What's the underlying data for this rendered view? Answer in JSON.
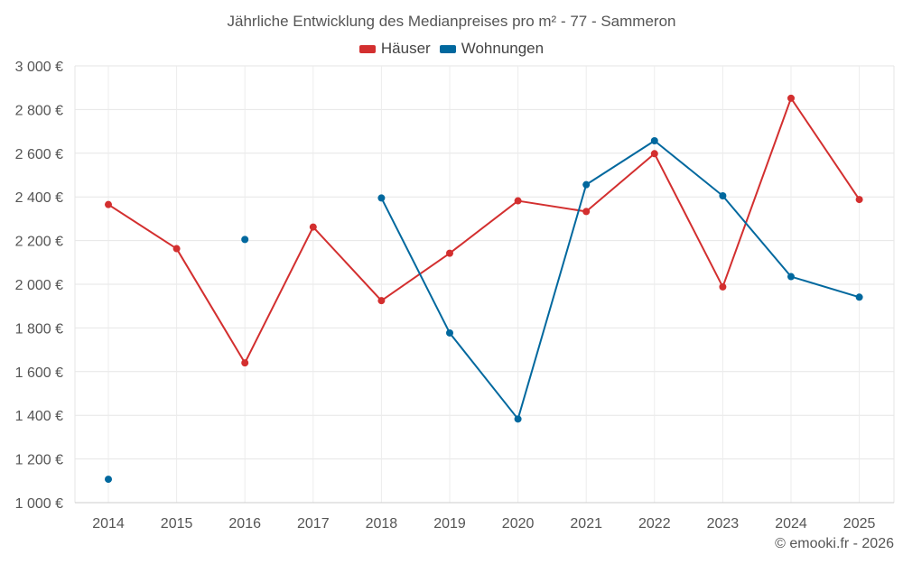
{
  "chart_data": {
    "type": "line",
    "title": "Jährliche Entwicklung des Medianpreises pro m² - 77 - Sammeron",
    "categories": [
      "2014",
      "2015",
      "2016",
      "2017",
      "2018",
      "2019",
      "2020",
      "2021",
      "2022",
      "2023",
      "2024",
      "2025"
    ],
    "series": [
      {
        "name": "Häuser",
        "color": "#d32f2f",
        "values": [
          2365,
          2163,
          1640,
          2262,
          1925,
          2142,
          2382,
          2333,
          2598,
          1988,
          2852,
          2388
        ]
      },
      {
        "name": "Wohnungen",
        "color": "#01689e",
        "values": [
          1107,
          null,
          2205,
          null,
          2395,
          1777,
          1383,
          2456,
          2657,
          2405,
          2035,
          1941
        ]
      }
    ],
    "ylim": [
      1000,
      3000
    ],
    "yticks": [
      1000,
      1200,
      1400,
      1600,
      1800,
      2000,
      2200,
      2400,
      2600,
      2800,
      3000
    ],
    "ytick_labels": [
      "1 000 €",
      "1 200 €",
      "1 400 €",
      "1 600 €",
      "1 800 €",
      "2 000 €",
      "2 200 €",
      "2 400 €",
      "2 600 €",
      "2 800 €",
      "3 000 €"
    ],
    "xlabel": "",
    "ylabel": "",
    "grid": true,
    "legend_position": "top-center"
  },
  "credit": "© emooki.fr - 2026"
}
